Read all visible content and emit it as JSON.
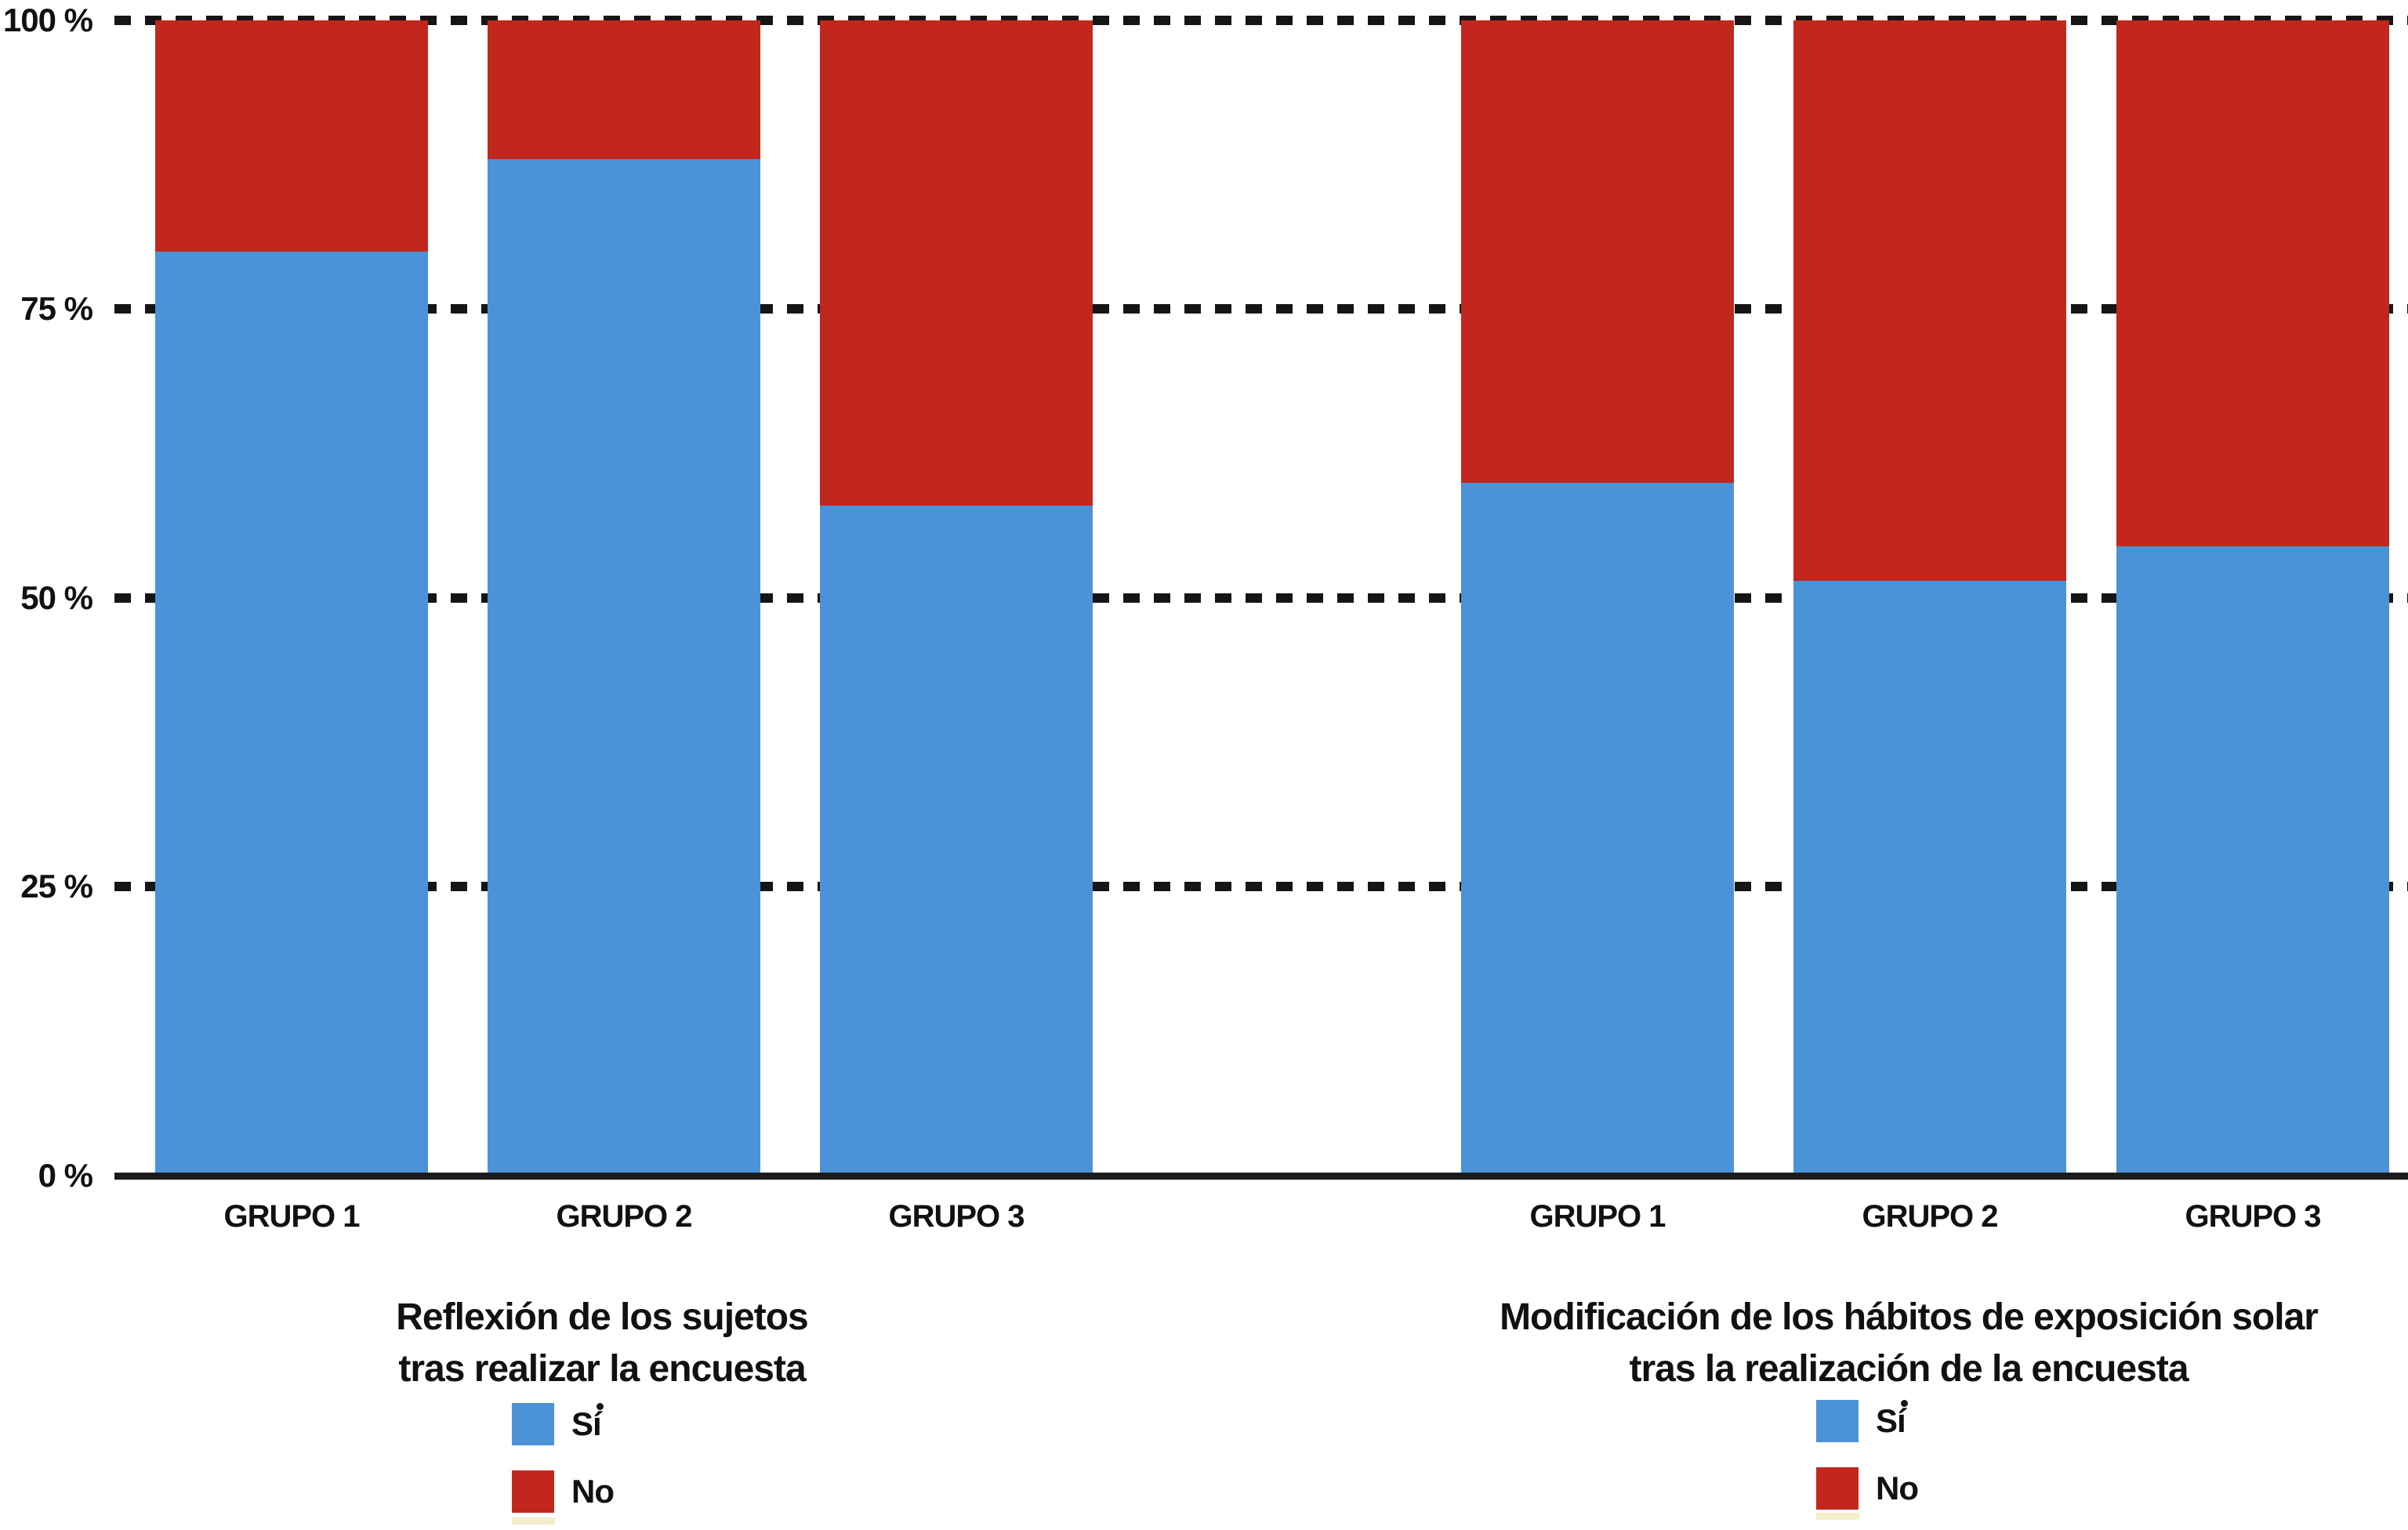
{
  "chart_data": {
    "type": "bar",
    "stacked": true,
    "unit": "%",
    "ylim": [
      0,
      100
    ],
    "y_ticks": [
      "100 %",
      "75 %",
      "50 %",
      "25 %",
      "0 %"
    ],
    "grid": "horizontal dashed lines at 25, 50, 75, 100; solid axis at 0",
    "legend_position": "below each panel title",
    "panels": [
      {
        "title_lines": [
          "Reflexión de los sujetos",
          "tras realizar la encuesta"
        ],
        "categories": [
          "GRUPO 1",
          "GRUPO 2",
          "GRUPO 3"
        ],
        "series": [
          {
            "name": "Sí",
            "color": "#4B92D8",
            "values": [
              80,
              88,
              58
            ]
          },
          {
            "name": "No",
            "color": "#C1271C",
            "values": [
              20,
              12,
              42
            ]
          }
        ]
      },
      {
        "title_lines": [
          "Modificación de los hábitos de exposición solar",
          "tras la realización de la encuesta"
        ],
        "categories": [
          "GRUPO 1",
          "GRUPO 2",
          "GRUPO 3"
        ],
        "series": [
          {
            "name": "Sí",
            "color": "#4B92D8",
            "values": [
              60,
              51.5,
              54.5
            ]
          },
          {
            "name": "No",
            "color": "#C1271C",
            "values": [
              40,
              48.5,
              45.5
            ]
          }
        ]
      }
    ]
  },
  "colors": {
    "si_blue": "#4B92D8",
    "no_red": "#C1271C",
    "axis_line": "#1b1b1b",
    "grid_dash": "#151515",
    "background": "#ffffff",
    "legend_artifact_yellow": "#f1eec9"
  }
}
